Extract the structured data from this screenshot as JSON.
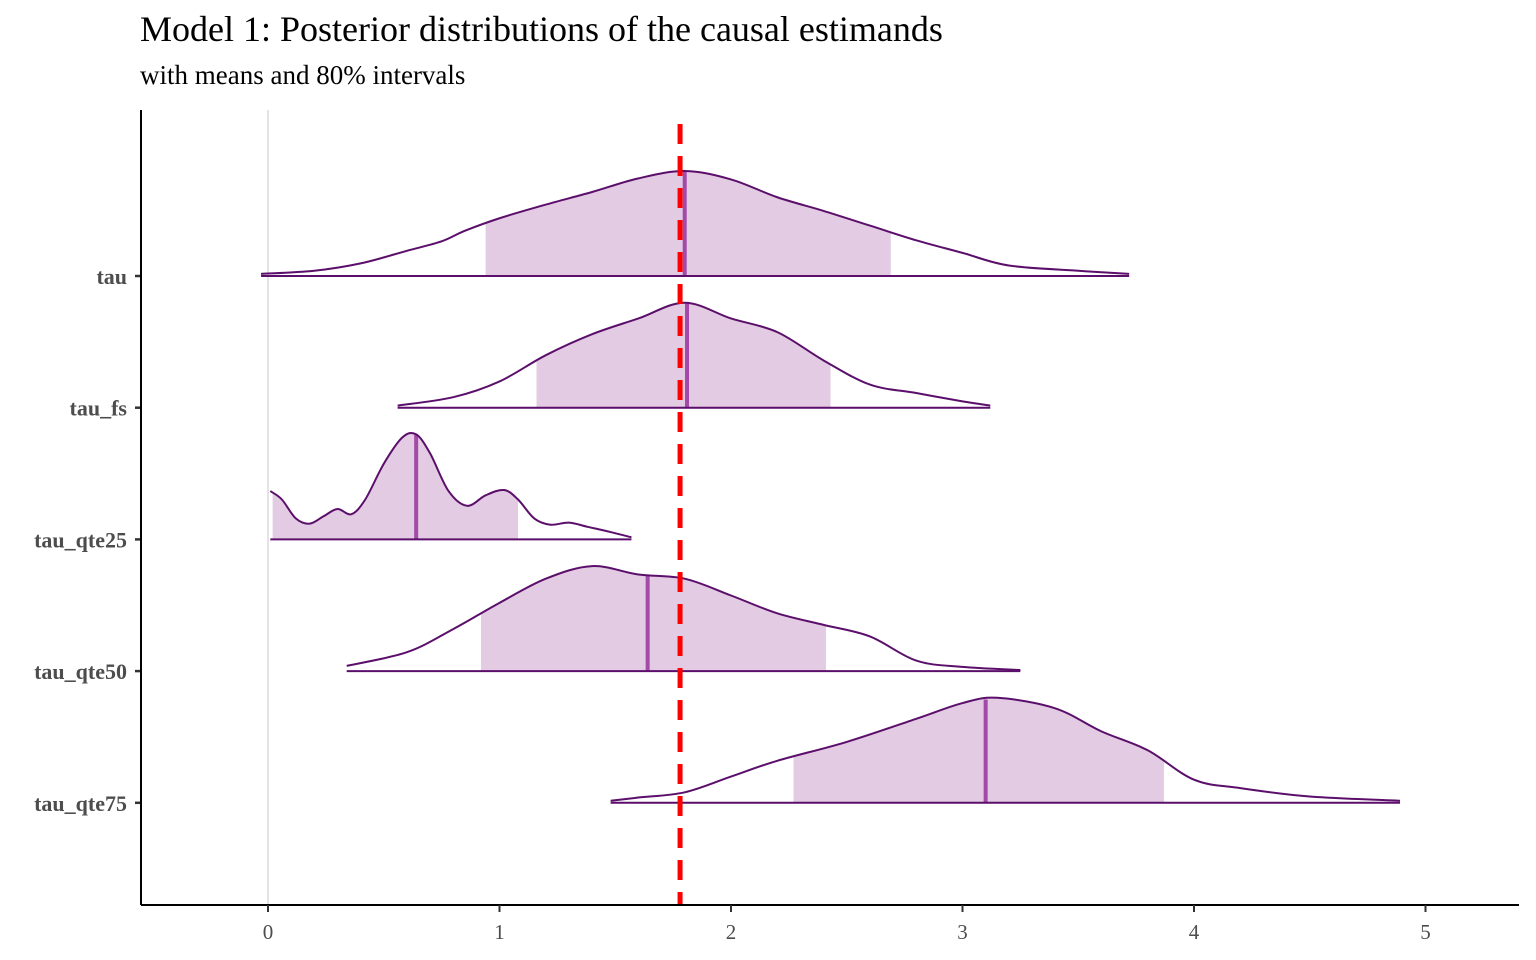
{
  "chart_data": {
    "type": "density_ridges",
    "title": "Model 1: Posterior distributions of the causal estimands",
    "subtitle": "with means and 80% intervals",
    "xlabel": "",
    "ylabel": "",
    "xlim": [
      -0.55,
      5.45
    ],
    "x_ticks": [
      "0",
      "1",
      "2",
      "3",
      "4",
      "5"
    ],
    "grid": "major x-gridline at 0 only",
    "reference_line": {
      "x": 1.78,
      "color": "#ff0000",
      "style": "dashed"
    },
    "colors": {
      "fill": "#e2cbe3",
      "outline": "#5b0f6b",
      "mean": "#a34aa9"
    },
    "series": [
      {
        "name": "tau",
        "range": [
          -0.03,
          3.72
        ],
        "interval_80": [
          0.94,
          2.69
        ],
        "mean": 1.8,
        "density": [
          [
            -0.03,
            0.02
          ],
          [
            0.2,
            0.05
          ],
          [
            0.4,
            0.12
          ],
          [
            0.6,
            0.24
          ],
          [
            0.75,
            0.33
          ],
          [
            0.85,
            0.43
          ],
          [
            1.0,
            0.55
          ],
          [
            1.2,
            0.68
          ],
          [
            1.4,
            0.8
          ],
          [
            1.6,
            0.93
          ],
          [
            1.8,
            1.0
          ],
          [
            2.0,
            0.92
          ],
          [
            2.2,
            0.75
          ],
          [
            2.4,
            0.62
          ],
          [
            2.6,
            0.48
          ],
          [
            2.8,
            0.34
          ],
          [
            3.0,
            0.22
          ],
          [
            3.2,
            0.1
          ],
          [
            3.5,
            0.05
          ],
          [
            3.72,
            0.02
          ]
        ]
      },
      {
        "name": "tau_fs",
        "range": [
          0.56,
          3.12
        ],
        "interval_80": [
          1.16,
          2.43
        ],
        "mean": 1.81,
        "density": [
          [
            0.56,
            0.02
          ],
          [
            0.8,
            0.1
          ],
          [
            1.0,
            0.25
          ],
          [
            1.2,
            0.5
          ],
          [
            1.4,
            0.7
          ],
          [
            1.6,
            0.85
          ],
          [
            1.8,
            1.0
          ],
          [
            2.0,
            0.85
          ],
          [
            2.2,
            0.72
          ],
          [
            2.4,
            0.45
          ],
          [
            2.6,
            0.22
          ],
          [
            2.8,
            0.14
          ],
          [
            3.0,
            0.06
          ],
          [
            3.12,
            0.02
          ]
        ]
      },
      {
        "name": "tau_qte25",
        "range": [
          0.01,
          1.57
        ],
        "interval_80": [
          0.02,
          1.08
        ],
        "mean": 0.64,
        "density": [
          [
            0.01,
            0.46
          ],
          [
            0.06,
            0.38
          ],
          [
            0.12,
            0.2
          ],
          [
            0.18,
            0.15
          ],
          [
            0.24,
            0.22
          ],
          [
            0.3,
            0.29
          ],
          [
            0.36,
            0.24
          ],
          [
            0.42,
            0.38
          ],
          [
            0.5,
            0.72
          ],
          [
            0.58,
            0.97
          ],
          [
            0.64,
            1.0
          ],
          [
            0.7,
            0.82
          ],
          [
            0.78,
            0.46
          ],
          [
            0.86,
            0.32
          ],
          [
            0.94,
            0.42
          ],
          [
            1.02,
            0.47
          ],
          [
            1.08,
            0.38
          ],
          [
            1.15,
            0.2
          ],
          [
            1.22,
            0.14
          ],
          [
            1.3,
            0.16
          ],
          [
            1.38,
            0.12
          ],
          [
            1.48,
            0.07
          ],
          [
            1.57,
            0.02
          ]
        ]
      },
      {
        "name": "tau_qte50",
        "range": [
          0.34,
          3.25
        ],
        "interval_80": [
          0.92,
          2.41
        ],
        "mean": 1.64,
        "density": [
          [
            0.34,
            0.05
          ],
          [
            0.6,
            0.18
          ],
          [
            0.8,
            0.4
          ],
          [
            1.0,
            0.65
          ],
          [
            1.2,
            0.88
          ],
          [
            1.4,
            1.0
          ],
          [
            1.6,
            0.92
          ],
          [
            1.8,
            0.88
          ],
          [
            2.0,
            0.72
          ],
          [
            2.2,
            0.55
          ],
          [
            2.4,
            0.44
          ],
          [
            2.6,
            0.33
          ],
          [
            2.8,
            0.1
          ],
          [
            3.0,
            0.04
          ],
          [
            3.25,
            0.01
          ]
        ]
      },
      {
        "name": "tau_qte75",
        "range": [
          1.48,
          4.89
        ],
        "interval_80": [
          2.27,
          3.87
        ],
        "mean": 3.1,
        "density": [
          [
            1.48,
            0.02
          ],
          [
            1.6,
            0.05
          ],
          [
            1.8,
            0.1
          ],
          [
            2.0,
            0.25
          ],
          [
            2.2,
            0.4
          ],
          [
            2.5,
            0.58
          ],
          [
            2.8,
            0.8
          ],
          [
            3.0,
            0.95
          ],
          [
            3.15,
            1.0
          ],
          [
            3.4,
            0.9
          ],
          [
            3.6,
            0.68
          ],
          [
            3.8,
            0.5
          ],
          [
            4.0,
            0.22
          ],
          [
            4.2,
            0.14
          ],
          [
            4.5,
            0.06
          ],
          [
            4.89,
            0.02
          ]
        ]
      }
    ]
  }
}
